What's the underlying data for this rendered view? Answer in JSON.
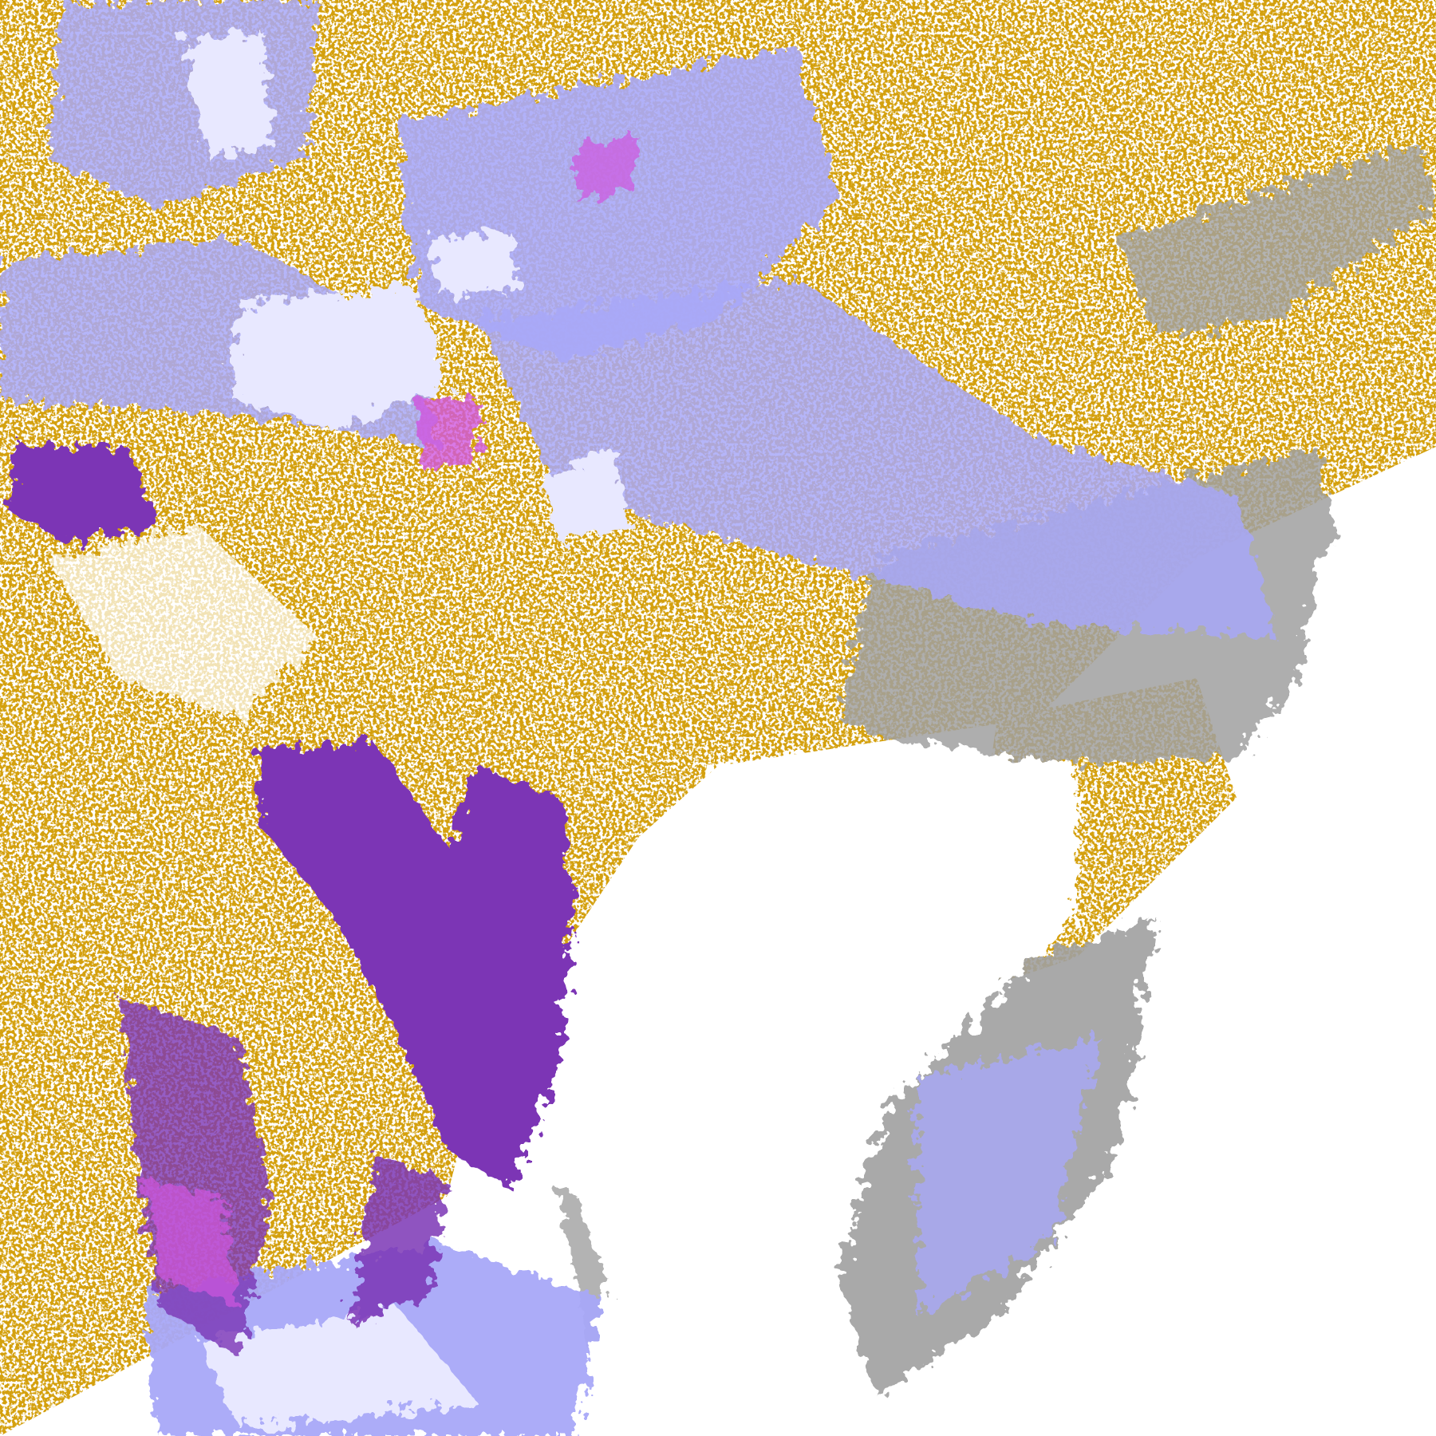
{
  "map": {
    "palette": {
      "background": "#ffffff",
      "gold": "#d4a010",
      "purple": "#7b35b5",
      "magenta": "#d055e0",
      "lavender": "#a8a8f8",
      "pale_lavender": "#e8e8ff",
      "gray": "#a0a0a0"
    }
  }
}
